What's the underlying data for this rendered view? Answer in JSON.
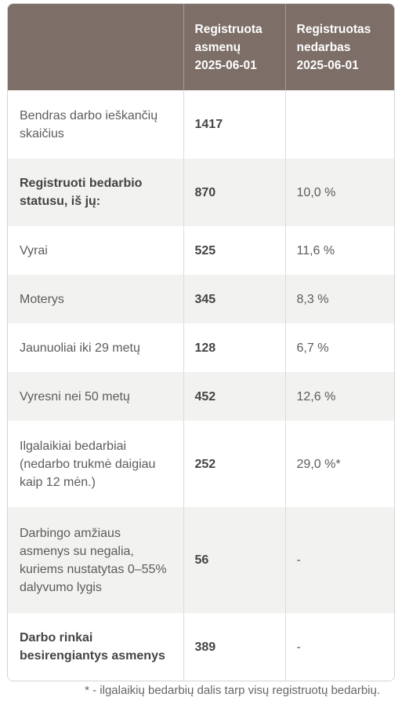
{
  "table": {
    "headers": [
      "",
      "Registruota asmenų 2025-06-01",
      "Registruotas nedarbas 2025-06-01"
    ],
    "rows": [
      {
        "label": "Bendras darbo ieškančių skaičius",
        "count": "1417",
        "rate": ""
      },
      {
        "label": "Registruoti bedarbio statusu, iš jų:",
        "count": "870",
        "rate": "10,0 %"
      },
      {
        "label": "Vyrai",
        "count": "525",
        "rate": "11,6 %"
      },
      {
        "label": "Moterys",
        "count": "345",
        "rate": "8,3 %"
      },
      {
        "label": "Jaunuoliai iki 29 metų",
        "count": "128",
        "rate": "6,7 %"
      },
      {
        "label": "Vyresni nei 50 metų",
        "count": "452",
        "rate": "12,6 %"
      },
      {
        "label": "Ilgalaikiai bedarbiai (nedarbo trukmė daigiau kaip 12 mėn.)",
        "count": "252",
        "rate": "29,0 %*"
      },
      {
        "label": "Darbingo amžiaus asmenys su negalia, kuriems nustatytas 0–55% dalyvumo lygis",
        "count": "56",
        "rate": "-"
      },
      {
        "label": "Darbo rinkai besirengiantys asmenys",
        "count": "389",
        "rate": "-"
      }
    ]
  },
  "footnote": "* - ilgalaikių bedarbių dalis tarp visų registruotų bedarbių."
}
